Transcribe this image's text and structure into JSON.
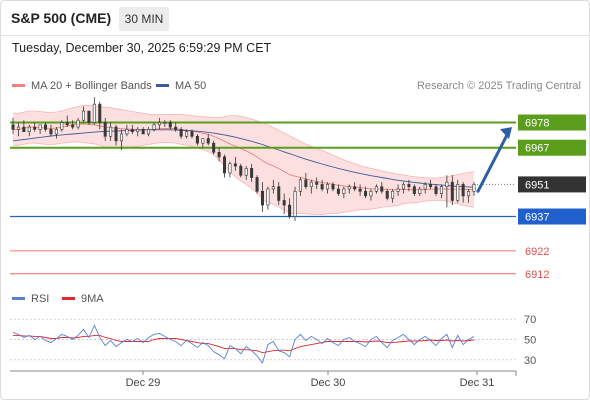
{
  "header": {
    "title": "S&P 500 (CME)",
    "timeframe": "30 MIN"
  },
  "timestamp": "Tuesday, December 30, 2025 6:59:29 PM CET",
  "legend": {
    "bb_label": "MA 20 + Bollinger Bands",
    "bb_color": "#f08080",
    "ma50_label": "MA 50",
    "ma50_color": "#3a5a98"
  },
  "research_credit": "Research © 2025 Trading Central",
  "rsi_legend": {
    "rsi_label": "RSI",
    "rsi_color": "#5b7fd6",
    "ma_label": "9MA",
    "ma_color": "#e0282e"
  },
  "price_levels": [
    {
      "value": "6978",
      "kind": "resistance",
      "color": "#5a9e1c"
    },
    {
      "value": "6967",
      "kind": "resistance",
      "color": "#5a9e1c"
    },
    {
      "value": "6951",
      "kind": "last",
      "color": "#333333"
    },
    {
      "value": "6937",
      "kind": "support",
      "color": "#2060cc"
    },
    {
      "value": "6922",
      "kind": "support",
      "color": "#e05050"
    },
    {
      "value": "6912",
      "kind": "support",
      "color": "#e05050"
    }
  ],
  "rsi_ticks": [
    "70",
    "50",
    "30"
  ],
  "x_ticks": [
    "Dec 29",
    "Dec 30",
    "Dec 31"
  ],
  "chart_data": {
    "type": "candlestick",
    "ylim": [
      6908,
      6990
    ],
    "rsi_ylim": [
      20,
      80
    ],
    "candles": [
      [
        6977,
        6980,
        6973,
        6975
      ],
      [
        6975,
        6978,
        6972,
        6976
      ],
      [
        6976,
        6979,
        6974,
        6974
      ],
      [
        6974,
        6977,
        6972,
        6976
      ],
      [
        6976,
        6978,
        6974,
        6975
      ],
      [
        6975,
        6977,
        6973,
        6977
      ],
      [
        6977,
        6978,
        6974,
        6975
      ],
      [
        6975,
        6977,
        6972,
        6973
      ],
      [
        6973,
        6976,
        6971,
        6975
      ],
      [
        6975,
        6979,
        6974,
        6978
      ],
      [
        6978,
        6981,
        6976,
        6977
      ],
      [
        6977,
        6979,
        6975,
        6976
      ],
      [
        6976,
        6980,
        6975,
        6979
      ],
      [
        6979,
        6985,
        6978,
        6983
      ],
      [
        6983,
        6983,
        6977,
        6978
      ],
      [
        6978,
        6989,
        6977,
        6986
      ],
      [
        6986,
        6987,
        6975,
        6978
      ],
      [
        6978,
        6980,
        6970,
        6972
      ],
      [
        6972,
        6978,
        6970,
        6976
      ],
      [
        6976,
        6977,
        6968,
        6970
      ],
      [
        6970,
        6975,
        6966,
        6973
      ],
      [
        6973,
        6977,
        6972,
        6975
      ],
      [
        6975,
        6977,
        6973,
        6974
      ],
      [
        6974,
        6976,
        6972,
        6975
      ],
      [
        6975,
        6976,
        6973,
        6973
      ],
      [
        6973,
        6976,
        6972,
        6975
      ],
      [
        6975,
        6978,
        6974,
        6977
      ],
      [
        6977,
        6980,
        6975,
        6978
      ],
      [
        6978,
        6979,
        6976,
        6978
      ],
      [
        6978,
        6979,
        6975,
        6976
      ],
      [
        6976,
        6978,
        6974,
        6975
      ],
      [
        6975,
        6976,
        6971,
        6972
      ],
      [
        6972,
        6975,
        6971,
        6974
      ],
      [
        6974,
        6975,
        6971,
        6972
      ],
      [
        6972,
        6973,
        6968,
        6969
      ],
      [
        6969,
        6971,
        6967,
        6971
      ],
      [
        6971,
        6973,
        6968,
        6969
      ],
      [
        6969,
        6970,
        6964,
        6965
      ],
      [
        6965,
        6967,
        6961,
        6963
      ],
      [
        6963,
        6964,
        6954,
        6956
      ],
      [
        6956,
        6961,
        6954,
        6960
      ],
      [
        6960,
        6963,
        6957,
        6959
      ],
      [
        6959,
        6960,
        6954,
        6955
      ],
      [
        6955,
        6959,
        6953,
        6958
      ],
      [
        6958,
        6960,
        6952,
        6954
      ],
      [
        6954,
        6955,
        6947,
        6948
      ],
      [
        6948,
        6952,
        6939,
        6942
      ],
      [
        6942,
        6950,
        6940,
        6949
      ],
      [
        6949,
        6953,
        6947,
        6950
      ],
      [
        6950,
        6952,
        6942,
        6944
      ],
      [
        6944,
        6947,
        6938,
        6942
      ],
      [
        6942,
        6945,
        6936,
        6937
      ],
      [
        6937,
        6950,
        6935,
        6948
      ],
      [
        6948,
        6954,
        6946,
        6953
      ],
      [
        6953,
        6956,
        6949,
        6950
      ],
      [
        6950,
        6953,
        6947,
        6952
      ],
      [
        6952,
        6954,
        6949,
        6951
      ],
      [
        6951,
        6953,
        6948,
        6949
      ],
      [
        6949,
        6952,
        6947,
        6951
      ],
      [
        6951,
        6952,
        6948,
        6949
      ],
      [
        6949,
        6951,
        6946,
        6947
      ],
      [
        6947,
        6950,
        6945,
        6949
      ],
      [
        6949,
        6951,
        6947,
        6950
      ],
      [
        6950,
        6952,
        6948,
        6949
      ],
      [
        6949,
        6951,
        6946,
        6948
      ],
      [
        6948,
        6950,
        6945,
        6946
      ],
      [
        6946,
        6949,
        6944,
        6948
      ],
      [
        6948,
        6951,
        6947,
        6950
      ],
      [
        6950,
        6952,
        6947,
        6948
      ],
      [
        6948,
        6949,
        6944,
        6945
      ],
      [
        6945,
        6949,
        6943,
        6948
      ],
      [
        6948,
        6951,
        6946,
        6949
      ],
      [
        6949,
        6952,
        6947,
        6951
      ],
      [
        6951,
        6953,
        6948,
        6950
      ],
      [
        6950,
        6951,
        6946,
        6947
      ],
      [
        6947,
        6950,
        6946,
        6949
      ],
      [
        6949,
        6952,
        6947,
        6951
      ],
      [
        6951,
        6953,
        6949,
        6950
      ],
      [
        6950,
        6951,
        6946,
        6947
      ],
      [
        6947,
        6951,
        6945,
        6950
      ],
      [
        6950,
        6955,
        6941,
        6952
      ],
      [
        6952,
        6955,
        6942,
        6944
      ],
      [
        6944,
        6953,
        6943,
        6951
      ],
      [
        6951,
        6952,
        6943,
        6946
      ],
      [
        6946,
        6949,
        6943,
        6948
      ],
      [
        6948,
        6952,
        6946,
        6951
      ]
    ],
    "ma20": [
      6975,
      6975,
      6975.5,
      6976,
      6976,
      6975.8,
      6975.5,
      6975.4,
      6975.6,
      6976,
      6976.5,
      6977,
      6977.3,
      6977.4,
      6977.2,
      6977,
      6976.5,
      6976,
      6975.8,
      6975.5,
      6975.3,
      6975.2,
      6975.1,
      6975,
      6975,
      6975,
      6975.1,
      6975.3,
      6975.4,
      6975.4,
      6975.3,
      6975,
      6974.7,
      6974.3,
      6973.8,
      6973.3,
      6972.8,
      6972,
      6971,
      6969.8,
      6968.7,
      6967.7,
      6966.6,
      6965.6,
      6964.4,
      6963,
      6961.3,
      6960,
      6959.1,
      6957.9,
      6956.6,
      6955.3,
      6954.6,
      6954.1,
      6953.4,
      6952.8,
      6952.3,
      6951.8,
      6951.5,
      6951.1,
      6950.6,
      6950.3,
      6950,
      6949.8,
      6949.6,
      6949.3,
      6949.1,
      6949,
      6949,
      6948.8,
      6948.7,
      6948.7,
      6948.8,
      6948.8,
      6948.7,
      6948.7,
      6948.8,
      6948.9,
      6948.9,
      6949,
      6949,
      6948.9,
      6948.9,
      6948.8,
      6948.8,
      6948.8
    ],
    "ma50": [
      6970,
      6970.3,
      6970.6,
      6970.9,
      6971.2,
      6971.5,
      6971.8,
      6972.1,
      6972.4,
      6972.6,
      6972.8,
      6973,
      6973.2,
      6973.4,
      6973.6,
      6973.8,
      6974,
      6974.1,
      6974.2,
      6974.3,
      6974.4,
      6974.5,
      6974.6,
      6974.7,
      6974.8,
      6974.8,
      6974.8,
      6974.8,
      6974.8,
      6974.8,
      6974.7,
      6974.6,
      6974.5,
      6974.4,
      6974.2,
      6974,
      6973.7,
      6973.4,
      6973,
      6972.6,
      6972.1,
      6971.6,
      6971,
      6970.4,
      6969.8,
      6969.1,
      6968.4,
      6967.6,
      6966.8,
      6966,
      6965.2,
      6964.4,
      6963.6,
      6962.8,
      6962,
      6961.3,
      6960.6,
      6959.9,
      6959.2,
      6958.6,
      6958,
      6957.4,
      6956.8,
      6956.3,
      6955.8,
      6955.3,
      6954.8,
      6954.4,
      6954,
      6953.6,
      6953.2,
      6952.8,
      6952.5,
      6952.2,
      6951.9,
      6951.6,
      6951.3,
      6951.1,
      6950.9,
      6950.7,
      6950.5,
      6950.3,
      6950.1,
      6950,
      6949.9,
      6949.8
    ],
    "bb_upper": [
      6982,
      6982,
      6982.5,
      6983,
      6983,
      6982.8,
      6982.5,
      6982.4,
      6982.6,
      6983,
      6983.8,
      6984.5,
      6985,
      6985.5,
      6985.5,
      6985.3,
      6985,
      6984.7,
      6984.4,
      6984,
      6983.6,
      6983.2,
      6982.8,
      6982.4,
      6982,
      6981.6,
      6981.4,
      6981.4,
      6981.5,
      6981.6,
      6981.6,
      6981.5,
      6981.3,
      6981,
      6980.7,
      6980.5,
      6980.3,
      6980.2,
      6980.2,
      6980.5,
      6981,
      6981,
      6980.7,
      6980.2,
      6979.5,
      6978.8,
      6978,
      6977,
      6975.8,
      6974.6,
      6973.4,
      6972.2,
      6971,
      6969.8,
      6968.6,
      6967.6,
      6966.7,
      6965.8,
      6964.8,
      6963.8,
      6962.8,
      6961.8,
      6960.8,
      6960,
      6959.2,
      6958.6,
      6958,
      6957.4,
      6956.9,
      6956.4,
      6955.9,
      6955.5,
      6955.1,
      6954.7,
      6954.4,
      6954.1,
      6953.9,
      6953.8,
      6953.8,
      6954,
      6954.3,
      6954.8,
      6955.3,
      6955.8,
      6956.2,
      6956.6
    ],
    "bb_lower": [
      6968,
      6968,
      6968.5,
      6969,
      6969,
      6968.8,
      6968.5,
      6968.4,
      6968.6,
      6969,
      6969.2,
      6969.5,
      6969.6,
      6969.3,
      6968.9,
      6968.7,
      6968,
      6967.3,
      6967.2,
      6967,
      6967,
      6967.2,
      6967.4,
      6967.6,
      6968,
      6968.4,
      6968.8,
      6969.2,
      6969.3,
      6969.2,
      6969,
      6968.5,
      6968.1,
      6967.6,
      6966.9,
      6966.1,
      6965.3,
      6963.8,
      6961.8,
      6959.1,
      6956.4,
      6954.4,
      6952.5,
      6951,
      6949.3,
      6947.2,
      6944.6,
      6943,
      6942.4,
      6941.2,
      6939.8,
      6938.4,
      6938.2,
      6938.4,
      6938.2,
      6938,
      6937.9,
      6937.8,
      6938.2,
      6938.4,
      6938.4,
      6938.8,
      6939.2,
      6939.6,
      6940,
      6940,
      6940.2,
      6940.6,
      6941.1,
      6941.2,
      6941.5,
      6941.9,
      6942.5,
      6942.9,
      6943,
      6943.3,
      6943.7,
      6944,
      6944,
      6944,
      6943.7,
      6943,
      6942.5,
      6941.8,
      6941.4,
      6941
    ],
    "forecast_arrow": {
      "from": 6948,
      "to": 6976
    },
    "rsi": [
      57,
      55,
      52,
      54,
      50,
      53,
      49,
      47,
      51,
      55,
      53,
      50,
      54,
      60,
      52,
      64,
      52,
      44,
      49,
      43,
      47,
      50,
      48,
      51,
      47,
      52,
      55,
      56,
      53,
      50,
      48,
      44,
      49,
      46,
      42,
      47,
      44,
      38,
      35,
      31,
      44,
      41,
      36,
      43,
      39,
      34,
      27,
      45,
      48,
      39,
      37,
      33,
      50,
      55,
      49,
      53,
      50,
      46,
      51,
      47,
      44,
      50,
      52,
      48,
      46,
      43,
      50,
      53,
      47,
      42,
      49,
      52,
      55,
      50,
      45,
      50,
      53,
      49,
      44,
      51,
      55,
      42,
      54,
      45,
      50,
      53
    ],
    "rsi_ma": [
      54,
      54,
      53.5,
      53.5,
      53,
      53,
      52,
      51,
      51,
      52,
      52,
      51.5,
      52,
      53,
      53,
      54,
      54,
      52,
      51,
      49,
      48,
      48,
      48,
      48,
      48,
      48,
      50,
      51,
      51,
      51,
      51,
      50,
      49,
      48,
      47,
      46,
      46,
      44.5,
      43,
      41,
      41,
      41,
      40,
      40,
      39.5,
      39,
      37,
      38,
      39,
      39.5,
      39.5,
      39,
      41,
      43,
      44,
      45,
      46,
      47,
      48,
      48,
      48,
      48,
      48,
      48,
      48,
      47.5,
      48,
      48.5,
      48,
      47,
      47,
      47.5,
      48,
      48.5,
      48.5,
      48.5,
      49,
      49.5,
      49,
      49,
      49.5,
      48.5,
      49,
      48.5,
      49,
      49.5
    ]
  }
}
